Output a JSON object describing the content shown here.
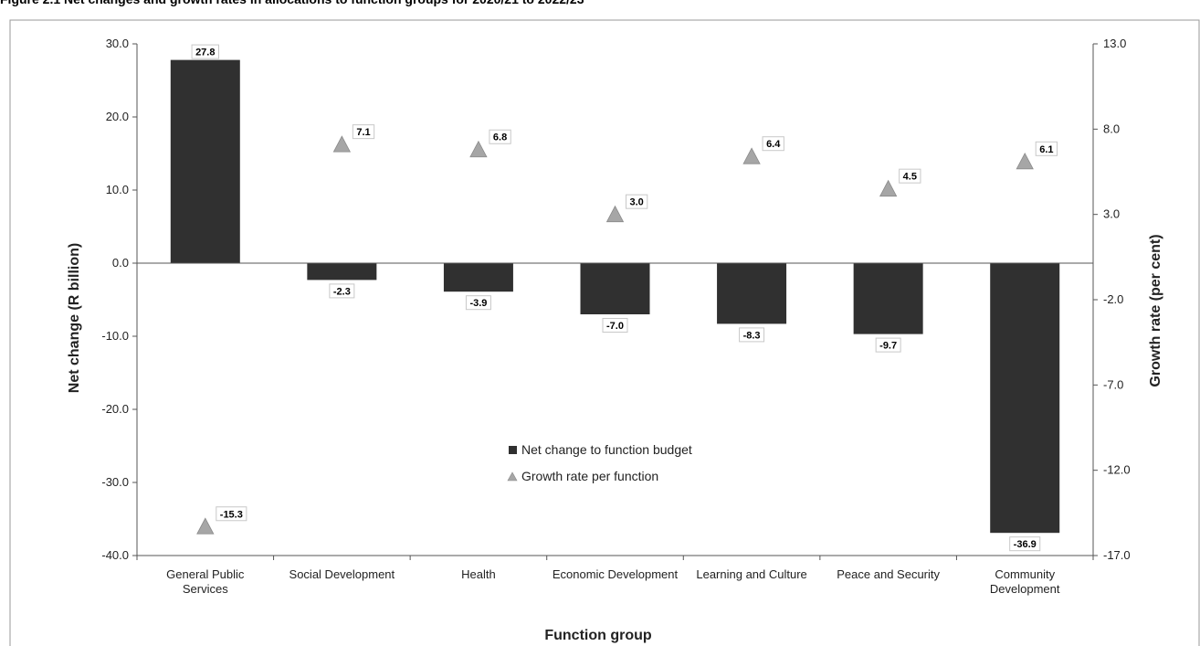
{
  "figure": {
    "title": "Figure 2.1 Net changes and growth rates in allocations to function groups for 2020/21 to 2022/23"
  },
  "chart_data": {
    "type": "bar",
    "categories": [
      [
        "General Public",
        "Services"
      ],
      [
        "Social Development"
      ],
      [
        "Health"
      ],
      [
        "Economic Development"
      ],
      [
        "Learning and Culture"
      ],
      [
        "Peace and Security"
      ],
      [
        "Community",
        "Development"
      ]
    ],
    "series": [
      {
        "name": "Net change to function budget",
        "type": "bar",
        "axis": "left",
        "color": "#303030",
        "values": [
          27.8,
          -2.3,
          -3.9,
          -7.0,
          -8.3,
          -9.7,
          -36.9
        ],
        "labels": [
          "27.8",
          "-2.3",
          "-3.9",
          "-7.0",
          "-8.3",
          "-9.7",
          "-36.9"
        ]
      },
      {
        "name": "Growth rate per function",
        "type": "scatter",
        "marker": "triangle",
        "axis": "right",
        "color": "#a6a6a6",
        "values": [
          -15.3,
          7.1,
          6.8,
          3.0,
          6.4,
          4.5,
          6.1
        ],
        "labels": [
          "-15.3",
          "7.1",
          "6.8",
          "3.0",
          "6.4",
          "4.5",
          "6.1"
        ]
      }
    ],
    "xlabel": "Function group",
    "ylabel": "Net change (R billion)",
    "y2label": "Growth rate (per cent)",
    "ylim": [
      -40,
      30
    ],
    "y2lim": [
      -17,
      13
    ],
    "yticks": [
      "30.0",
      "20.0",
      "10.0",
      "0.0",
      "-10.0",
      "-20.0",
      "-30.0",
      "-40.0"
    ],
    "yticks_values": [
      30,
      20,
      10,
      0,
      -10,
      -20,
      -30,
      -40
    ],
    "y2ticks": [
      "13.0",
      "8.0",
      "3.0",
      "-2.0",
      "-7.0",
      "-12.0",
      "-17.0"
    ],
    "y2ticks_values": [
      13,
      8,
      3,
      -2,
      -7,
      -12,
      -17
    ],
    "legend_position": "center",
    "grid": false
  }
}
